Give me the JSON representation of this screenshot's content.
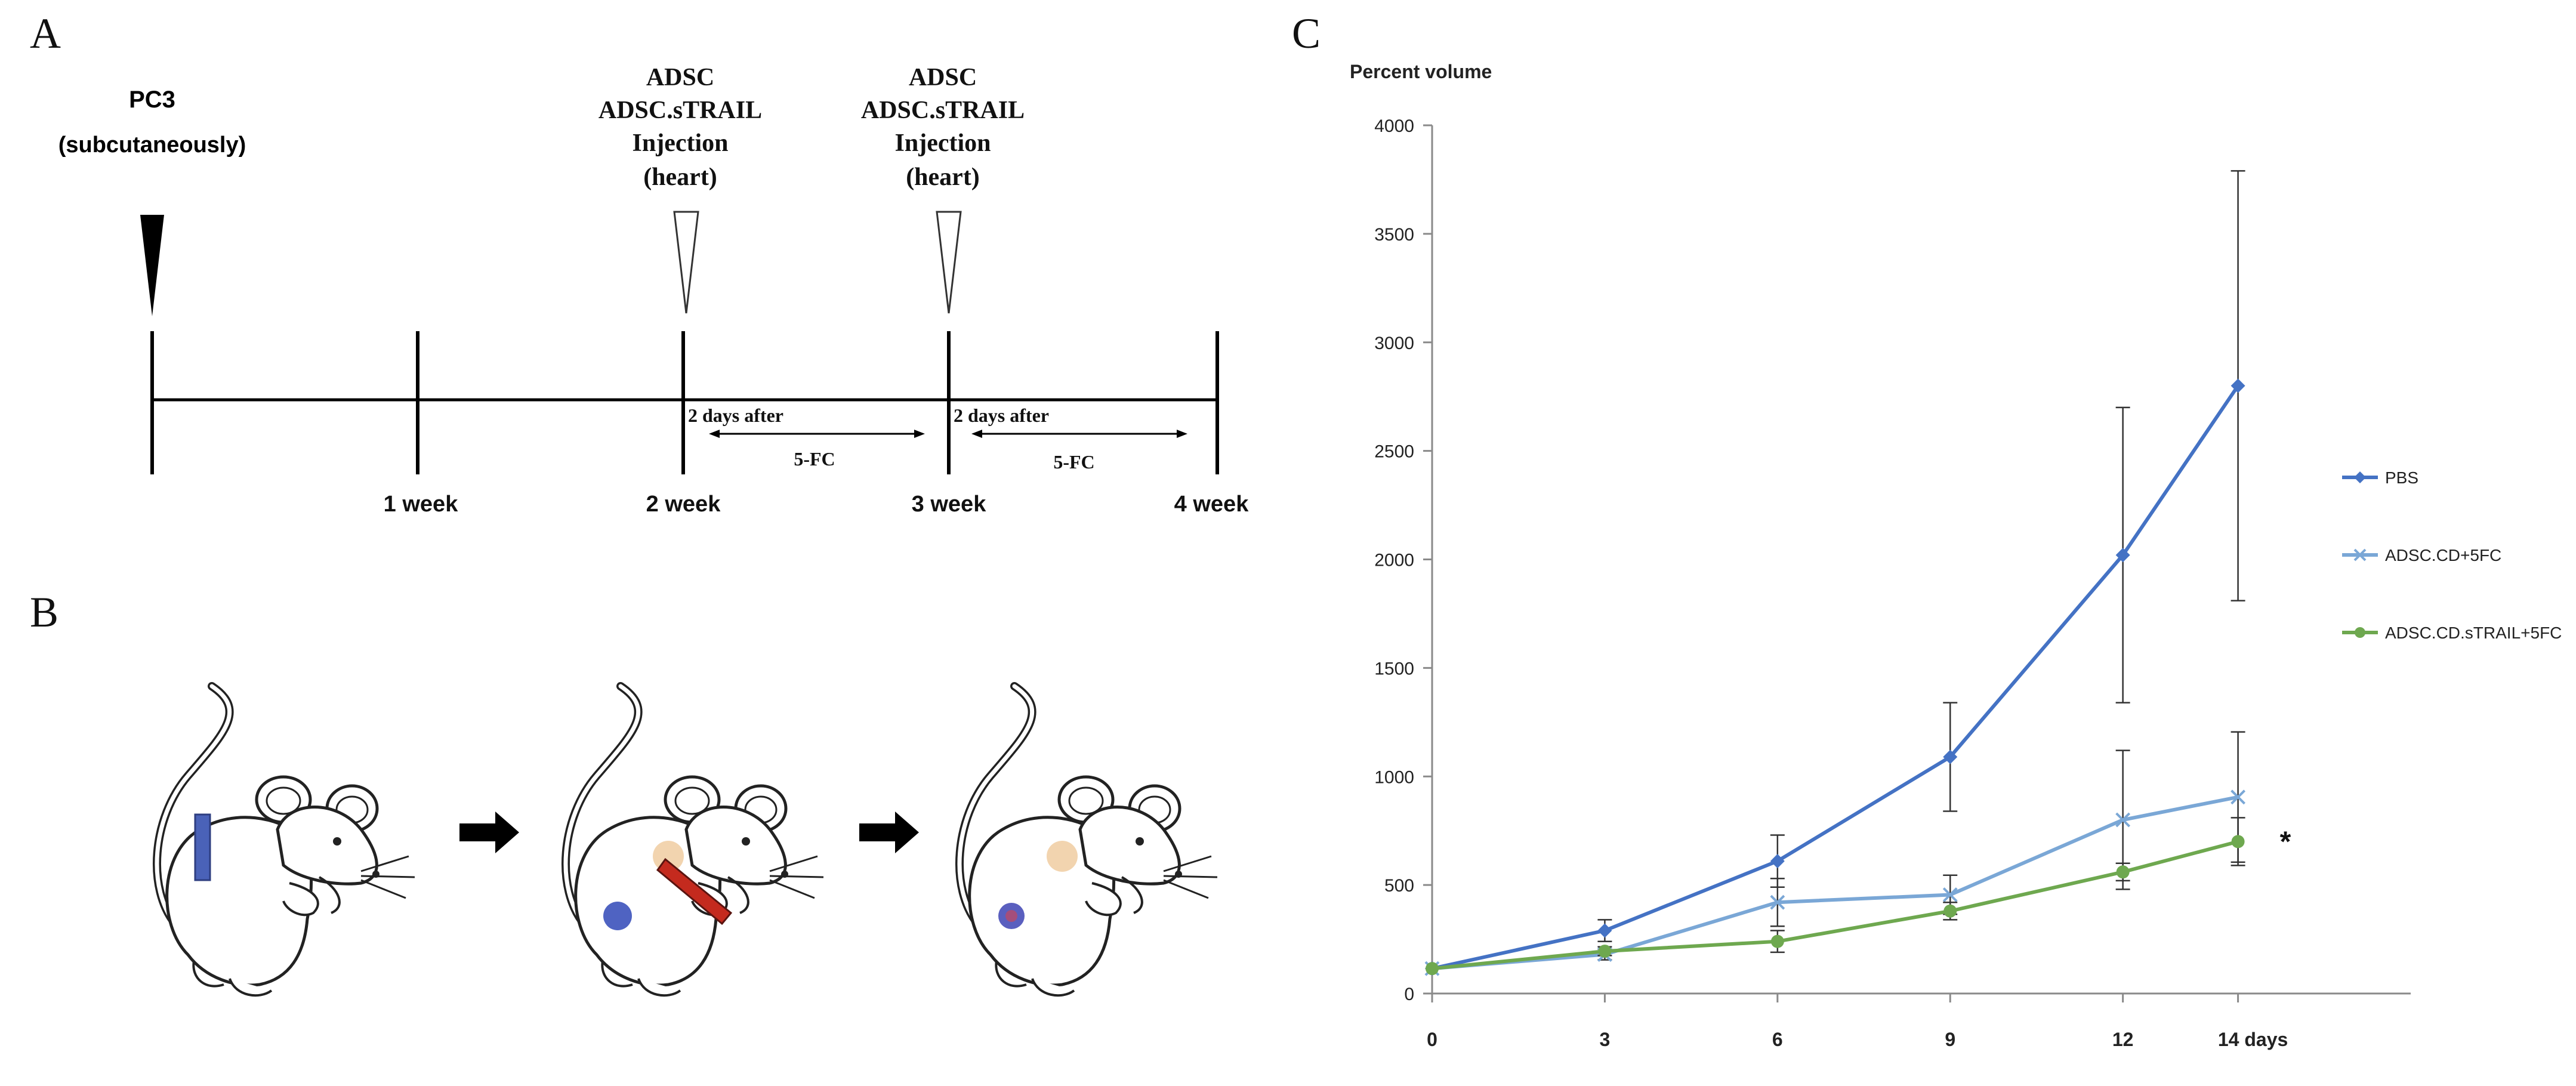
{
  "panels": {
    "a": {
      "letter": "A",
      "pc3_title": "PC3",
      "pc3_sub": "(subcutaneously)",
      "inject1": [
        "ADSC",
        "ADSC.sTRAIL",
        "Injection",
        "(heart)"
      ],
      "inject2": [
        "ADSC",
        "ADSC.sTRAIL",
        "Injection",
        "(heart)"
      ],
      "weeks": [
        "1 week",
        "2 week",
        "3 week",
        "4 week"
      ],
      "after1": "2 days after",
      "after2": "2 days after",
      "fc1": "5-FC",
      "fc2": "5-FC"
    },
    "b": {
      "letter": "B"
    },
    "c": {
      "letter": "C"
    }
  },
  "chart_data": {
    "type": "line",
    "ylabel": "Percent volume",
    "x": [
      0,
      3,
      6,
      9,
      12,
      14
    ],
    "x_tick_labels": [
      "0",
      "3",
      "6",
      "9",
      "12",
      "14 days"
    ],
    "ylim": [
      0,
      4000
    ],
    "y_ticks": [
      0,
      500,
      1000,
      1500,
      2000,
      2500,
      3000,
      3500,
      4000
    ],
    "legend_position": "right",
    "series": [
      {
        "name": "PBS",
        "color": "#4472c4",
        "marker": "diamond",
        "values": [
          115,
          290,
          610,
          1090,
          2020,
          2800
        ],
        "errors": [
          0,
          50,
          120,
          250,
          680,
          990
        ]
      },
      {
        "name": "ADSC.CD+5FC",
        "color": "#7aa7d6",
        "marker": "x",
        "values": [
          115,
          180,
          420,
          455,
          800,
          905
        ],
        "errors": [
          0,
          25,
          110,
          90,
          320,
          300
        ]
      },
      {
        "name": "ADSC.CD.sTRAIL+5FC",
        "color": "#6ea84f",
        "marker": "circle",
        "values": [
          115,
          195,
          240,
          380,
          560,
          700
        ],
        "errors": [
          0,
          20,
          50,
          40,
          40,
          110
        ]
      }
    ],
    "annotation": "*"
  }
}
